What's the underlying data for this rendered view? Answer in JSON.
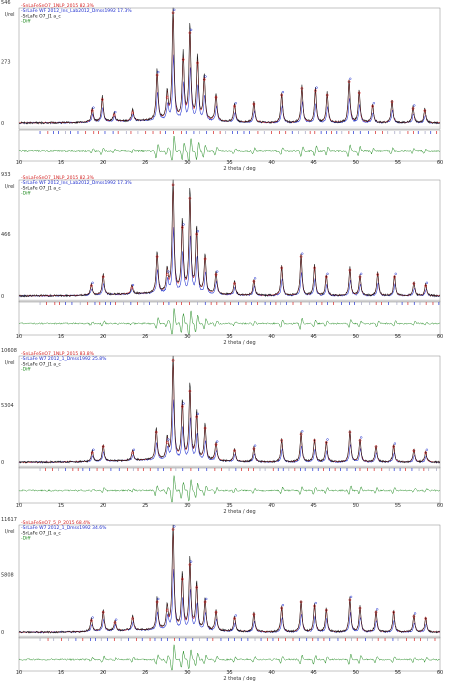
{
  "colors": {
    "observed": "#111111",
    "model_a": "#d42020",
    "model_b": "#2030d0",
    "difference": "#1f8a1f",
    "ticks_a": "#d42020",
    "ticks_b": "#2030d0",
    "ticks_c": "#a0a0c0"
  },
  "chart_data": [
    {
      "type": "line",
      "panel": 1,
      "xlabel": "2 theta / deg",
      "ylabel": "I/rel",
      "y_tick_labels": [
        "546",
        "273",
        "0"
      ],
      "y_values": [
        546,
        273,
        0
      ],
      "xlim": [
        10,
        60
      ],
      "x_ticks": [
        10,
        15,
        20,
        25,
        30,
        35,
        40,
        45,
        50,
        55,
        60
      ],
      "x_tick_labels": [
        "10",
        "15",
        "20",
        "25",
        "30",
        "35",
        "40",
        "45",
        "50",
        "55",
        "60"
      ],
      "legend": [
        {
          "text": "-SnLaFeSnO7_1NLP_2015 82.3%",
          "color": "#d42020"
        },
        {
          "text": "-SrLaFe WF 2012_Ins_Lab2012_Dmss1992 17.3%",
          "color": "#2030d0"
        },
        {
          "text": "-SrLaFe O7_J1 a_c",
          "color": "#111111"
        },
        {
          "text": "-Diff",
          "color": "#1f8a1f"
        }
      ],
      "peaks": [
        [
          18.7,
          0.12
        ],
        [
          19.9,
          0.22
        ],
        [
          21.3,
          0.08
        ],
        [
          23.5,
          0.1
        ],
        [
          26.4,
          0.44
        ],
        [
          27.6,
          0.24
        ],
        [
          28.3,
          1.0
        ],
        [
          29.5,
          0.58
        ],
        [
          30.3,
          0.82
        ],
        [
          31.2,
          0.55
        ],
        [
          32.0,
          0.4
        ],
        [
          33.4,
          0.24
        ],
        [
          35.6,
          0.16
        ],
        [
          37.9,
          0.18
        ],
        [
          41.2,
          0.26
        ],
        [
          43.6,
          0.32
        ],
        [
          45.2,
          0.3
        ],
        [
          46.6,
          0.26
        ],
        [
          49.2,
          0.38
        ],
        [
          50.4,
          0.28
        ],
        [
          52.0,
          0.16
        ],
        [
          54.3,
          0.2
        ],
        [
          56.8,
          0.14
        ],
        [
          58.2,
          0.12
        ]
      ]
    },
    {
      "type": "line",
      "panel": 2,
      "xlabel": "2 theta / deg",
      "ylabel": "I/rel",
      "y_tick_labels": [
        "933",
        "466",
        "0"
      ],
      "y_values": [
        933,
        466,
        0
      ],
      "xlim": [
        10,
        60
      ],
      "x_ticks": [
        10,
        15,
        20,
        25,
        30,
        35,
        40,
        45,
        50,
        55,
        60
      ],
      "x_tick_labels": [
        "10",
        "15",
        "20",
        "25",
        "30",
        "35",
        "40",
        "45",
        "50",
        "55",
        "60"
      ],
      "legend": [
        {
          "text": "-SnLaFeSnO7_1NLP_2015 82.3%",
          "color": "#d42020"
        },
        {
          "text": "-SrLaFe WF 2012_Ins_Lab2012_Dmss1992 17.3%",
          "color": "#2030d0"
        },
        {
          "text": "-SrLaFe O7_J1 a_c",
          "color": "#111111"
        },
        {
          "text": "-Diff",
          "color": "#1f8a1f"
        }
      ],
      "peaks": [
        [
          18.6,
          0.1
        ],
        [
          20.0,
          0.18
        ],
        [
          23.4,
          0.08
        ],
        [
          26.4,
          0.36
        ],
        [
          27.6,
          0.2
        ],
        [
          28.3,
          1.0
        ],
        [
          29.4,
          0.62
        ],
        [
          30.3,
          0.88
        ],
        [
          31.1,
          0.56
        ],
        [
          32.1,
          0.34
        ],
        [
          33.4,
          0.2
        ],
        [
          35.6,
          0.12
        ],
        [
          37.9,
          0.14
        ],
        [
          41.2,
          0.26
        ],
        [
          43.5,
          0.36
        ],
        [
          45.1,
          0.26
        ],
        [
          46.5,
          0.18
        ],
        [
          49.3,
          0.24
        ],
        [
          50.5,
          0.18
        ],
        [
          52.6,
          0.2
        ],
        [
          54.6,
          0.18
        ],
        [
          56.9,
          0.12
        ],
        [
          58.3,
          0.1
        ]
      ]
    },
    {
      "type": "line",
      "panel": 3,
      "xlabel": "2 theta / deg",
      "ylabel": "I/rel",
      "y_tick_labels": [
        "10608",
        "5304",
        "0"
      ],
      "y_values": [
        10608,
        5304,
        0
      ],
      "xlim": [
        10,
        60
      ],
      "x_ticks": [
        10,
        15,
        20,
        25,
        30,
        35,
        40,
        45,
        50,
        55,
        60
      ],
      "x_tick_labels": [
        "10",
        "15",
        "20",
        "25",
        "30",
        "35",
        "40",
        "45",
        "50",
        "55",
        "60"
      ],
      "legend": [
        {
          "text": "-SnLaFeSnO7_1NLP_2015 83.8%",
          "color": "#d42020"
        },
        {
          "text": "-SrLaFe W7 2012_1_Dmss1992 25.8%",
          "color": "#2030d0"
        },
        {
          "text": "-SrLaFe O7_J1 a_c",
          "color": "#111111"
        },
        {
          "text": "-Diff",
          "color": "#1f8a1f"
        }
      ],
      "peaks": [
        [
          18.7,
          0.1
        ],
        [
          20.0,
          0.16
        ],
        [
          23.5,
          0.1
        ],
        [
          26.3,
          0.3
        ],
        [
          27.6,
          0.2
        ],
        [
          28.3,
          1.0
        ],
        [
          29.4,
          0.55
        ],
        [
          30.3,
          0.7
        ],
        [
          31.1,
          0.45
        ],
        [
          32.1,
          0.34
        ],
        [
          33.4,
          0.18
        ],
        [
          35.6,
          0.12
        ],
        [
          37.9,
          0.14
        ],
        [
          41.2,
          0.22
        ],
        [
          43.5,
          0.28
        ],
        [
          45.1,
          0.22
        ],
        [
          46.5,
          0.2
        ],
        [
          49.3,
          0.3
        ],
        [
          50.5,
          0.22
        ],
        [
          52.4,
          0.16
        ],
        [
          54.5,
          0.16
        ],
        [
          56.9,
          0.12
        ],
        [
          58.3,
          0.1
        ]
      ]
    },
    {
      "type": "line",
      "panel": 4,
      "xlabel": "2 theta / deg",
      "ylabel": "I/rel",
      "y_tick_labels": [
        "11617",
        "5808",
        "0"
      ],
      "y_values": [
        11617,
        5808,
        0
      ],
      "xlim": [
        10,
        60
      ],
      "x_ticks": [
        10,
        15,
        20,
        25,
        30,
        35,
        40,
        45,
        50,
        55,
        60
      ],
      "x_tick_labels": [
        "10",
        "15",
        "20",
        "25",
        "30",
        "35",
        "40",
        "45",
        "50",
        "55",
        "60"
      ],
      "legend": [
        {
          "text": "-SnLaFeSnO7_5_P_2015 68.4%",
          "color": "#d42020"
        },
        {
          "text": "-SrLaFe W7 2012_1_Dmss1992 34.6%",
          "color": "#2030d0"
        },
        {
          "text": "-SrLaFe O7_J1 a_c",
          "color": "#111111"
        },
        {
          "text": "-Diff",
          "color": "#1f8a1f"
        }
      ],
      "peaks": [
        [
          18.6,
          0.12
        ],
        [
          20.0,
          0.2
        ],
        [
          21.4,
          0.1
        ],
        [
          23.5,
          0.14
        ],
        [
          26.4,
          0.3
        ],
        [
          27.6,
          0.22
        ],
        [
          28.3,
          1.0
        ],
        [
          29.4,
          0.52
        ],
        [
          30.3,
          0.66
        ],
        [
          31.1,
          0.44
        ],
        [
          32.1,
          0.3
        ],
        [
          33.4,
          0.2
        ],
        [
          35.6,
          0.14
        ],
        [
          37.9,
          0.18
        ],
        [
          41.2,
          0.24
        ],
        [
          43.5,
          0.3
        ],
        [
          45.1,
          0.26
        ],
        [
          46.5,
          0.22
        ],
        [
          49.3,
          0.32
        ],
        [
          50.5,
          0.24
        ],
        [
          52.4,
          0.2
        ],
        [
          54.5,
          0.2
        ],
        [
          56.9,
          0.16
        ],
        [
          58.3,
          0.14
        ]
      ]
    }
  ]
}
